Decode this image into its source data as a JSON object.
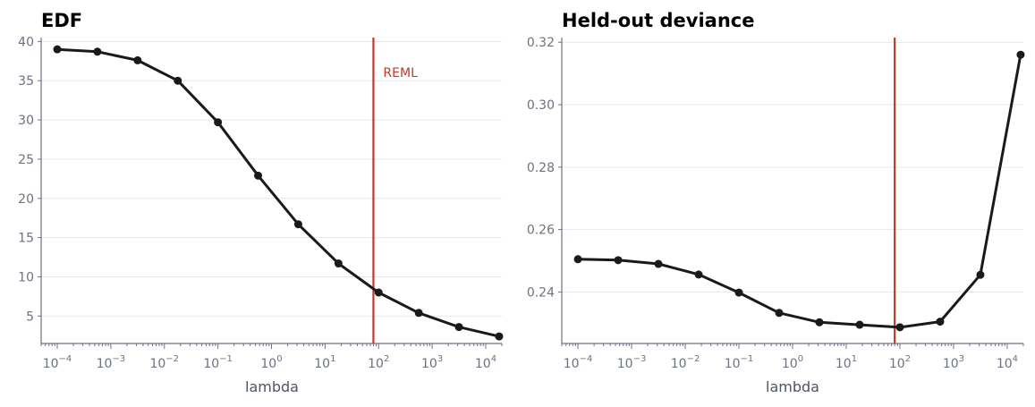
{
  "chart_data": [
    {
      "type": "line",
      "title": "EDF",
      "xlabel": "lambda",
      "ylabel": "",
      "xscale": "log",
      "xlim": [
        5e-05,
        20000
      ],
      "ylim": [
        1.5,
        40.5
      ],
      "yticks": [
        5,
        10,
        15,
        20,
        25,
        30,
        35,
        40
      ],
      "xticks": [
        0.0001,
        0.001,
        0.01,
        0.1,
        1,
        10,
        100,
        1000,
        10000
      ],
      "xtick_exponents": [
        "−4",
        "−3",
        "−2",
        "−1",
        "0",
        "1",
        "2",
        "3",
        "4"
      ],
      "grid": "horizontal",
      "series": [
        {
          "color": "#1a1a1a",
          "x": [
            0.0001,
            0.000562,
            0.00316,
            0.0178,
            0.1,
            0.562,
            3.16,
            17.8,
            100,
            562,
            3162,
            17783
          ],
          "y": [
            39.0,
            38.7,
            37.6,
            35.0,
            29.7,
            22.9,
            16.7,
            11.7,
            8.0,
            5.4,
            3.6,
            2.4
          ]
        }
      ],
      "reference_line": {
        "x": 80,
        "color": "#c0392b",
        "label": "REML"
      }
    },
    {
      "type": "line",
      "title": "Held-out deviance",
      "xlabel": "lambda",
      "ylabel": "",
      "xscale": "log",
      "xlim": [
        5e-05,
        20000
      ],
      "ylim": [
        0.2235,
        0.3215
      ],
      "yticks": [
        0.24,
        0.26,
        0.28,
        0.3,
        0.32
      ],
      "ytick_labels": [
        "0.24",
        "0.26",
        "0.28",
        "0.30",
        "0.32"
      ],
      "xticks": [
        0.0001,
        0.001,
        0.01,
        0.1,
        1,
        10,
        100,
        1000,
        10000
      ],
      "xtick_exponents": [
        "−4",
        "−3",
        "−2",
        "−1",
        "0",
        "1",
        "2",
        "3",
        "4"
      ],
      "grid": "horizontal",
      "series": [
        {
          "color": "#1a1a1a",
          "x": [
            0.0001,
            0.000562,
            0.00316,
            0.0178,
            0.1,
            0.562,
            3.16,
            17.8,
            100,
            562,
            3162,
            17783
          ],
          "y": [
            0.2505,
            0.2502,
            0.249,
            0.2456,
            0.2398,
            0.2333,
            0.2303,
            0.2295,
            0.2287,
            0.2305,
            0.2455,
            0.316
          ]
        }
      ],
      "reference_line": {
        "x": 80,
        "color": "#c0392b",
        "label": ""
      }
    }
  ]
}
